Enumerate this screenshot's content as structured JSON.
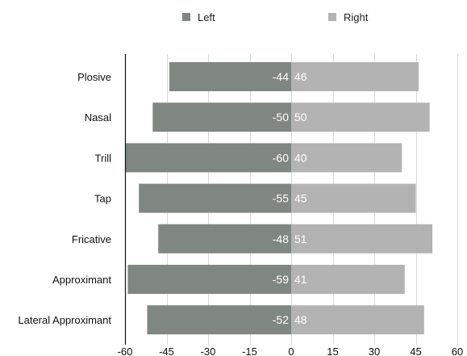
{
  "chart_data": {
    "type": "bar",
    "orientation": "horizontal",
    "categories": [
      "Plosive",
      "Nasal",
      "Trill",
      "Tap",
      "Fricative",
      "Approximant",
      "Lateral Approximant"
    ],
    "series": [
      {
        "name": "Left",
        "values": [
          -44,
          -50,
          -60,
          -55,
          -48,
          -59,
          -52
        ],
        "color": "#808682"
      },
      {
        "name": "Right",
        "values": [
          46,
          50,
          40,
          45,
          51,
          41,
          48
        ],
        "color": "#b3b3b3"
      }
    ],
    "xlim": [
      -60,
      60
    ],
    "x_ticks": [
      "-60",
      "-45",
      "-30",
      "-15",
      "0",
      "15",
      "30",
      "45",
      "60"
    ],
    "x_tick_values": [
      -60,
      -45,
      -30,
      -15,
      0,
      15,
      30,
      45,
      60
    ],
    "grid": true,
    "legend_position": "top-center",
    "stacked": true
  }
}
